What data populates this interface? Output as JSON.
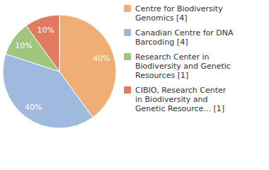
{
  "chart_data": {
    "type": "pie",
    "categories": [
      "Centre for Biodiversity Genomics [4]",
      "Canadian Centre for DNA Barcoding [4]",
      "Research Center in Biodiversity and Genetic Resources [1]",
      "CIBIO, Research Center in Biodiversity and Genetic Resource... [1]"
    ],
    "values": [
      40,
      40,
      10,
      10
    ],
    "value_labels": [
      "40%",
      "40%",
      "10%",
      "10%"
    ],
    "colors": [
      "#f0ad74",
      "#a0bade",
      "#9fc67c",
      "#e07b60"
    ],
    "data_labels": true,
    "legend": "right"
  }
}
